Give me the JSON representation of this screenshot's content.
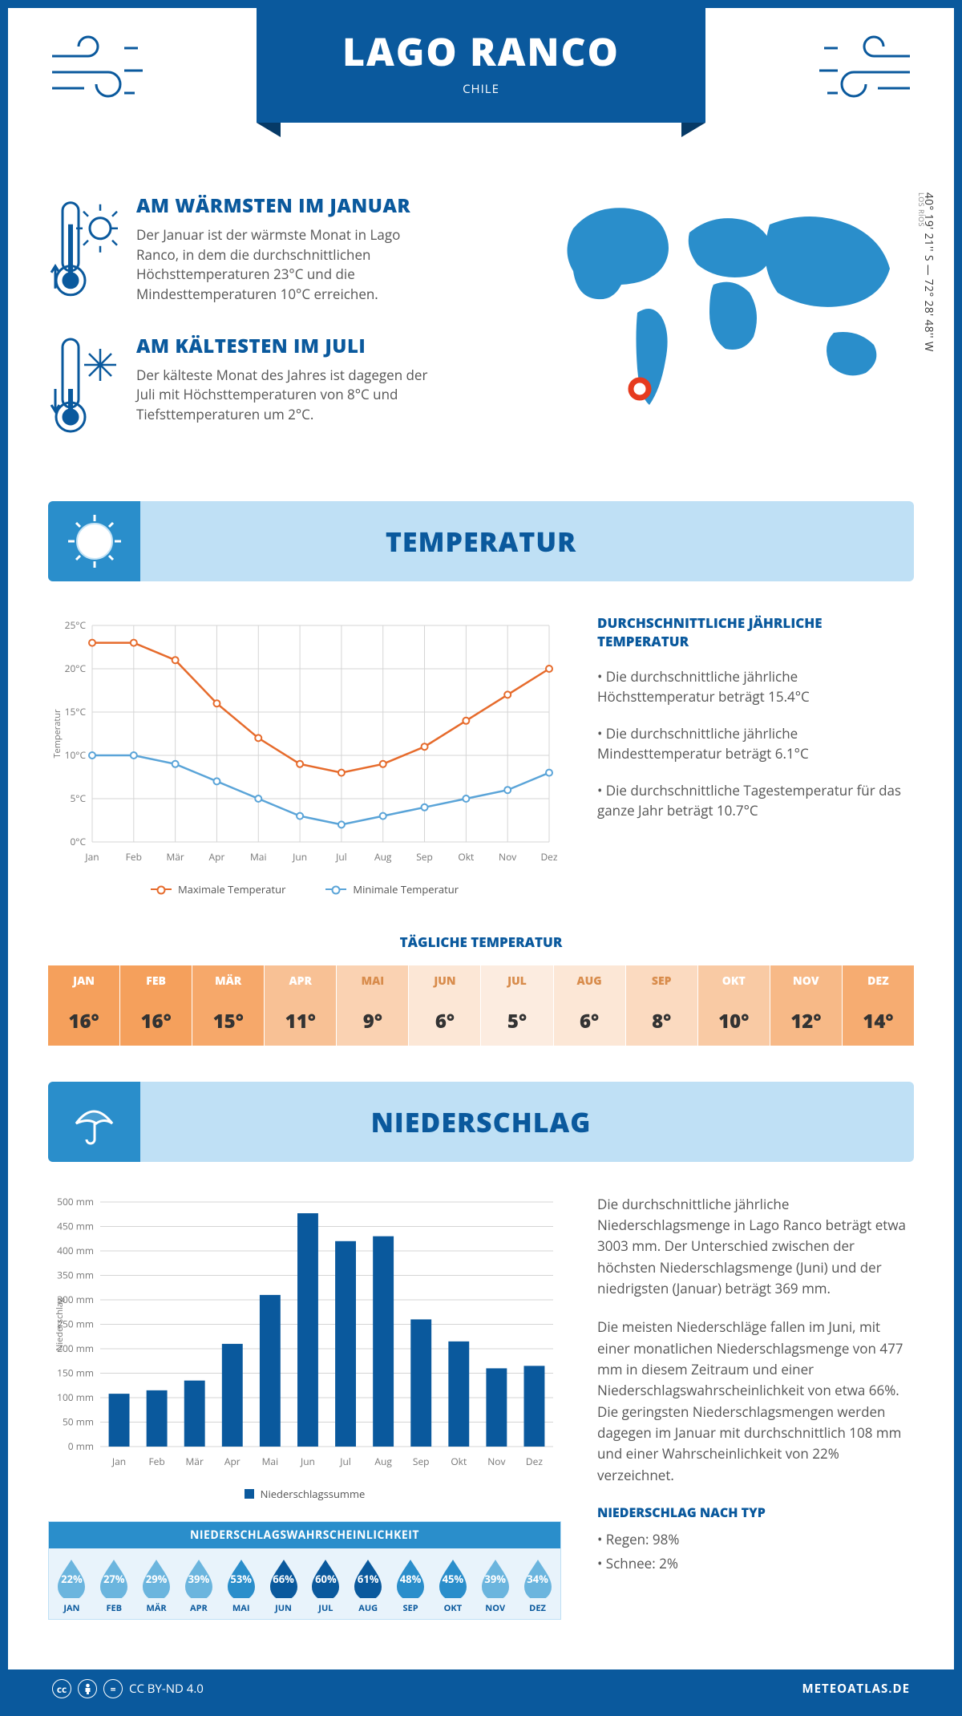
{
  "header": {
    "title": "LAGO RANCO",
    "country": "CHILE"
  },
  "coords": "40° 19' 21'' S — 72° 28' 48'' W",
  "region": "LOS RÍOS",
  "colors": {
    "primary": "#0a599d",
    "light": "#bfe0f5",
    "mid": "#2a8ecb",
    "orange": "#e66b2c",
    "blue_line": "#5aa4d8"
  },
  "warm": {
    "title": "AM WÄRMSTEN IM JANUAR",
    "text": "Der Januar ist der wärmste Monat in Lago Ranco, in dem die durchschnittlichen Höchsttemperaturen 23°C und die Mindesttemperaturen 10°C erreichen."
  },
  "cold": {
    "title": "AM KÄLTESTEN IM JULI",
    "text": "Der kälteste Monat des Jahres ist dagegen der Juli mit Höchsttemperaturen von 8°C und Tiefsttemperaturen um 2°C."
  },
  "sections": {
    "temp": "TEMPERATUR",
    "precip": "NIEDERSCHLAG"
  },
  "months": [
    "Jan",
    "Feb",
    "Mär",
    "Apr",
    "Mai",
    "Jun",
    "Jul",
    "Aug",
    "Sep",
    "Okt",
    "Nov",
    "Dez"
  ],
  "months_upper": [
    "JAN",
    "FEB",
    "MÄR",
    "APR",
    "MAI",
    "JUN",
    "JUL",
    "AUG",
    "SEP",
    "OKT",
    "NOV",
    "DEZ"
  ],
  "temp_chart": {
    "ylabel": "Temperatur",
    "ymin": 0,
    "ymax": 25,
    "ystep": 5,
    "max_series": [
      23,
      23,
      21,
      16,
      12,
      9,
      8,
      9,
      11,
      14,
      17,
      20
    ],
    "min_series": [
      10,
      10,
      9,
      7,
      5,
      3,
      2,
      3,
      4,
      5,
      6,
      8
    ],
    "max_color": "#e66b2c",
    "min_color": "#5aa4d8",
    "legend_max": "Maximale Temperatur",
    "legend_min": "Minimale Temperatur",
    "grid_color": "#d5d5d5",
    "tick_font": 12
  },
  "temp_info": {
    "title": "DURCHSCHNITTLICHE JÄHRLICHE TEMPERATUR",
    "b1": "• Die durchschnittliche jährliche Höchsttemperatur beträgt 15.4°C",
    "b2": "• Die durchschnittliche jährliche Mindesttemperatur beträgt 6.1°C",
    "b3": "• Die durchschnittliche Tagestemperatur für das ganze Jahr beträgt 10.7°C"
  },
  "daily_title": "TÄGLICHE TEMPERATUR",
  "daily_temp": {
    "values": [
      "16°",
      "16°",
      "15°",
      "11°",
      "9°",
      "6°",
      "5°",
      "6°",
      "8°",
      "10°",
      "12°",
      "14°"
    ],
    "heat": [
      1.0,
      1.0,
      0.9,
      0.6,
      0.4,
      0.15,
      0.08,
      0.15,
      0.3,
      0.5,
      0.7,
      0.85
    ],
    "hot_color": "#f5a05c",
    "cold_color": "#fdf3eb",
    "label_hot": "#ffffff",
    "label_cold": "#d88c4c"
  },
  "precip_chart": {
    "ylabel": "Niederschlag",
    "ymin": 0,
    "ymax": 500,
    "ystep": 50,
    "values": [
      108,
      115,
      135,
      210,
      310,
      477,
      420,
      430,
      260,
      215,
      160,
      165
    ],
    "bar_color": "#0a599d",
    "grid_color": "#d5d5d5",
    "legend": "Niederschlagssumme"
  },
  "precip_info": {
    "p1": "Die durchschnittliche jährliche Niederschlagsmenge in Lago Ranco beträgt etwa 3003 mm. Der Unterschied zwischen der höchsten Niederschlagsmenge (Juni) und der niedrigsten (Januar) beträgt 369 mm.",
    "p2": "Die meisten Niederschläge fallen im Juni, mit einer monatlichen Niederschlagsmenge von 477 mm in diesem Zeitraum und einer Niederschlagswahrscheinlichkeit von etwa 66%. Die geringsten Niederschlagsmengen werden dagegen im Januar mit durchschnittlich 108 mm und einer Wahrscheinlichkeit von 22% verzeichnet.",
    "type_title": "NIEDERSCHLAG NACH TYP",
    "type1": "• Regen: 98%",
    "type2": "• Schnee: 2%"
  },
  "prob": {
    "title": "NIEDERSCHLAGSWAHRSCHEINLICHKEIT",
    "values": [
      "22%",
      "27%",
      "29%",
      "39%",
      "53%",
      "66%",
      "60%",
      "61%",
      "48%",
      "45%",
      "39%",
      "34%"
    ],
    "nums": [
      22,
      27,
      29,
      39,
      53,
      66,
      60,
      61,
      48,
      45,
      39,
      34
    ],
    "light": "#6bb5de",
    "dark": "#0a599d"
  },
  "footer": {
    "license": "CC BY-ND 4.0",
    "site": "METEOATLAS.DE"
  }
}
